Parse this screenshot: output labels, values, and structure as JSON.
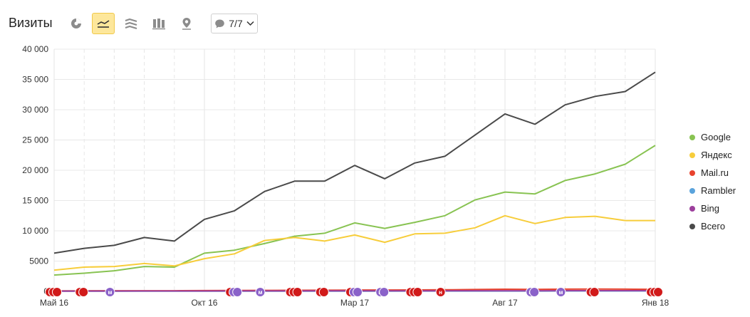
{
  "header": {
    "title": "Визиты",
    "filter_label": "7/7",
    "tools": [
      {
        "name": "pie-chart-icon",
        "active": false
      },
      {
        "name": "line-chart-icon",
        "active": true
      },
      {
        "name": "stacked-area-icon",
        "active": false
      },
      {
        "name": "bar-chart-icon",
        "active": false
      },
      {
        "name": "map-icon",
        "active": false
      }
    ]
  },
  "chart_data": {
    "type": "line",
    "x": [
      "2016-05",
      "2016-06",
      "2016-07",
      "2016-08",
      "2016-09",
      "2016-10",
      "2016-11",
      "2016-12",
      "2017-01",
      "2017-02",
      "2017-03",
      "2017-04",
      "2017-05",
      "2017-06",
      "2017-07",
      "2017-08",
      "2017-09",
      "2017-10",
      "2017-11",
      "2017-12",
      "2018-01"
    ],
    "x_tick_labels": [
      {
        "x": "2016-05",
        "label": "Май 16"
      },
      {
        "x": "2016-10",
        "label": "Окт 16"
      },
      {
        "x": "2017-03",
        "label": "Мар 17"
      },
      {
        "x": "2017-08",
        "label": "Авг 17"
      },
      {
        "x": "2018-01",
        "label": "Янв 18"
      }
    ],
    "y_ticks": [
      0,
      5000,
      10000,
      15000,
      20000,
      25000,
      30000,
      35000,
      40000
    ],
    "y_tick_labels": [
      "0",
      "5000",
      "10 000",
      "15 000",
      "20 000",
      "25 000",
      "30 000",
      "35 000",
      "40 000"
    ],
    "ylim": [
      0,
      40000
    ],
    "grid": true,
    "legend_position": "right",
    "series": [
      {
        "name": "Google",
        "color": "#88c352",
        "values": [
          2700,
          3000,
          3400,
          4100,
          4000,
          6300,
          6800,
          7900,
          9100,
          9600,
          11300,
          10400,
          11400,
          12500,
          15100,
          16400,
          16100,
          18300,
          19400,
          21000,
          24100
        ]
      },
      {
        "name": "Яндекс",
        "color": "#f7cd3b",
        "values": [
          3500,
          4000,
          4100,
          4600,
          4200,
          5400,
          6200,
          8400,
          8900,
          8300,
          9300,
          8100,
          9500,
          9600,
          10500,
          12500,
          11200,
          12200,
          12400,
          11700,
          11700
        ]
      },
      {
        "name": "Mail.ru",
        "color": "#e8432e",
        "values": [
          80,
          90,
          100,
          110,
          110,
          130,
          140,
          160,
          180,
          190,
          210,
          220,
          240,
          260,
          300,
          350,
          330,
          360,
          380,
          360,
          340
        ]
      },
      {
        "name": "Rambler",
        "color": "#5aa3dc",
        "values": [
          20,
          20,
          20,
          25,
          25,
          30,
          30,
          35,
          35,
          40,
          40,
          40,
          45,
          45,
          50,
          50,
          50,
          55,
          55,
          55,
          55
        ]
      },
      {
        "name": "Bing",
        "color": "#9c3f9c",
        "values": [
          40,
          45,
          50,
          55,
          55,
          60,
          65,
          70,
          75,
          80,
          85,
          85,
          90,
          95,
          100,
          110,
          110,
          115,
          120,
          120,
          120
        ]
      },
      {
        "name": "Всего",
        "color": "#4a4a4a",
        "values": [
          6300,
          7100,
          7600,
          8900,
          8300,
          11900,
          13300,
          16500,
          18200,
          18200,
          20800,
          18600,
          21200,
          22300,
          25800,
          29300,
          27600,
          30800,
          32200,
          33000,
          36200
        ]
      }
    ],
    "annotations": [
      {
        "x": "2016-05",
        "types": [
          "н",
          "н",
          "н"
        ]
      },
      {
        "x": "2016-06",
        "types": [
          "н",
          "н"
        ]
      },
      {
        "x": "2016-07",
        "types": [
          "м"
        ]
      },
      {
        "x": "2016-11",
        "types": [
          "н",
          "м",
          "м"
        ]
      },
      {
        "x": "2016-12",
        "types": [
          "м"
        ]
      },
      {
        "x": "2017-01",
        "types": [
          "н",
          "н",
          "н"
        ]
      },
      {
        "x": "2017-02",
        "types": [
          "н",
          "н"
        ]
      },
      {
        "x": "2017-03",
        "types": [
          "н",
          "м",
          "м"
        ]
      },
      {
        "x": "2017-04",
        "types": [
          "м",
          "м"
        ]
      },
      {
        "x": "2017-05",
        "types": [
          "н",
          "н",
          "н"
        ]
      },
      {
        "x": "2017-06",
        "types": [
          "н"
        ]
      },
      {
        "x": "2017-09",
        "types": [
          "м",
          "м"
        ]
      },
      {
        "x": "2017-10",
        "types": [
          "м"
        ]
      },
      {
        "x": "2017-11",
        "types": [
          "н",
          "н"
        ]
      },
      {
        "x": "2018-01",
        "types": [
          "н",
          "н",
          "н"
        ]
      }
    ]
  }
}
